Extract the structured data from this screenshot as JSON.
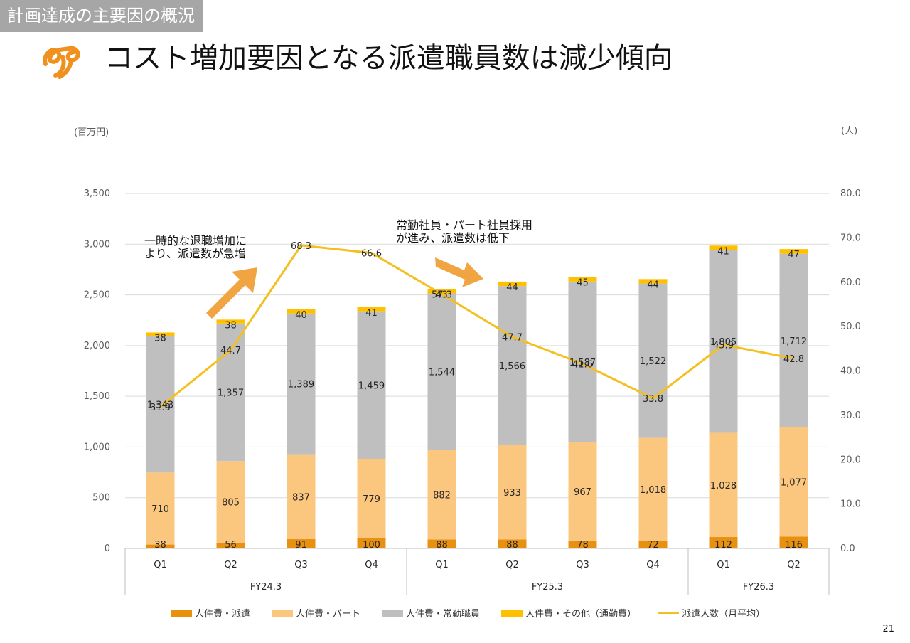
{
  "header": {
    "section": "計画達成の主要因の概況",
    "title": "コスト増加要因となる派遣職員数は減少傾向",
    "page": "21"
  },
  "colors": {
    "haken": "#e8900f",
    "part": "#fbc77e",
    "joukin": "#bfbfbf",
    "other": "#ffc000",
    "line": "#f4c021",
    "arrow": "#f0a542",
    "section_bg": "#a6a6a6",
    "logo": "#f0901e"
  },
  "callouts": {
    "left": "一時的な退職増加に\nより、派遣数が急増",
    "right": "常勤社員・パート社員採用\nが進み、派遣数は低下"
  },
  "chart_data": {
    "type": "bar",
    "stacked": true,
    "title": "",
    "ylabel_left": "(百万円)",
    "ylabel_right": "(人)",
    "ylim_left": [
      0,
      3500
    ],
    "yticks_left": [
      "0",
      "500",
      "1,000",
      "1,500",
      "2,000",
      "2,500",
      "3,000",
      "3,500"
    ],
    "ylim_right": [
      0,
      80
    ],
    "yticks_right": [
      "0.0",
      "10.0",
      "20.0",
      "30.0",
      "40.0",
      "50.0",
      "60.0",
      "70.0",
      "80.0"
    ],
    "categories": [
      "Q1",
      "Q2",
      "Q3",
      "Q4",
      "Q1",
      "Q2",
      "Q3",
      "Q4",
      "Q1",
      "Q2"
    ],
    "groups": [
      {
        "label": "FY24.3",
        "count": 4
      },
      {
        "label": "FY25.3",
        "count": 4
      },
      {
        "label": "FY26.3",
        "count": 2
      }
    ],
    "series": [
      {
        "name": "人件費・派遣",
        "key": "haken",
        "values": [
          38,
          56,
          91,
          100,
          88,
          88,
          78,
          72,
          112,
          116
        ],
        "labels": [
          "38",
          "56",
          "91",
          "100",
          "88",
          "88",
          "78",
          "72",
          "112",
          "116"
        ]
      },
      {
        "name": "人件費・パート",
        "key": "part",
        "values": [
          710,
          805,
          837,
          779,
          882,
          933,
          967,
          1018,
          1028,
          1077
        ],
        "labels": [
          "710",
          "805",
          "837",
          "779",
          "882",
          "933",
          "967",
          "1,018",
          "1,028",
          "1,077"
        ]
      },
      {
        "name": "人件費・常勤職員",
        "key": "joukin",
        "values": [
          1343,
          1357,
          1389,
          1459,
          1544,
          1566,
          1587,
          1522,
          1805,
          1712
        ],
        "labels": [
          "1,343",
          "1,357",
          "1,389",
          "1,459",
          "1,544",
          "1,566",
          "1,587",
          "1,522",
          "1,805",
          "1,712"
        ]
      },
      {
        "name": "人件費・その他（通勤費）",
        "key": "other",
        "values": [
          38,
          38,
          40,
          41,
          43,
          44,
          45,
          44,
          41,
          47
        ],
        "labels": [
          "38",
          "38",
          "40",
          "41",
          "43",
          "44",
          "45",
          "44",
          "41",
          "47"
        ]
      }
    ],
    "line": {
      "name": "派遣人数（月平均）",
      "axis": "right",
      "values": [
        31.9,
        44.7,
        68.3,
        66.6,
        57.3,
        47.7,
        41.6,
        33.8,
        45.9,
        42.8
      ],
      "labels": [
        "31.9",
        "44.7",
        "68.3",
        "66.6",
        "57.3",
        "47.7",
        "41.6",
        "33.8",
        "45.9",
        "42.8"
      ]
    }
  }
}
